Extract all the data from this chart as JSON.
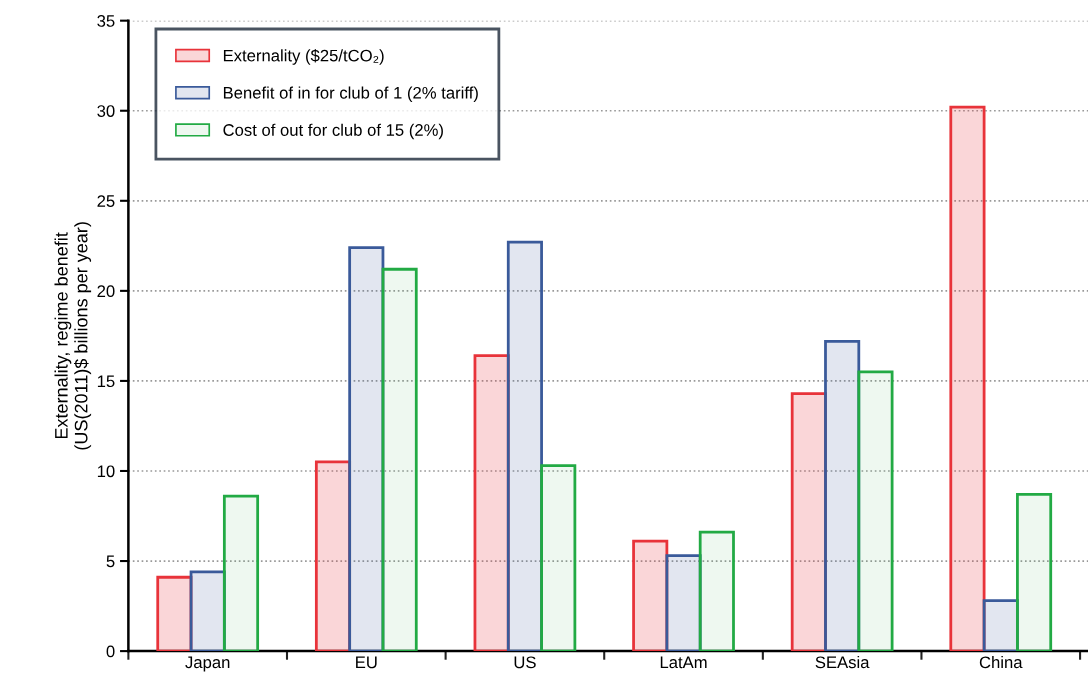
{
  "chart_data": {
    "type": "bar",
    "ylabel": "Externality, regime benefit\n(US(2011)$ billions per year)",
    "categories": [
      "Japan",
      "EU",
      "US",
      "LatAm",
      "SEAsia",
      "China"
    ],
    "series": [
      {
        "name": "Externality ($25/tCO₂)",
        "color": "#e8333a",
        "values": [
          4.1,
          10.5,
          16.4,
          6.1,
          14.3,
          30.2
        ]
      },
      {
        "name": "Benefit of in for club of 1 (2% tariff)",
        "color": "#3a5a9a",
        "values": [
          4.4,
          22.4,
          22.7,
          5.3,
          17.2,
          2.8
        ]
      },
      {
        "name": "Cost of out for club of 15 (2%)",
        "color": "#22aa44",
        "values": [
          8.6,
          21.2,
          10.3,
          6.6,
          15.5,
          8.7
        ]
      }
    ],
    "ylim": [
      0,
      35
    ],
    "yticks": [
      0,
      5,
      10,
      15,
      20,
      25,
      30,
      35
    ],
    "grid": "y",
    "legend": "top left"
  }
}
